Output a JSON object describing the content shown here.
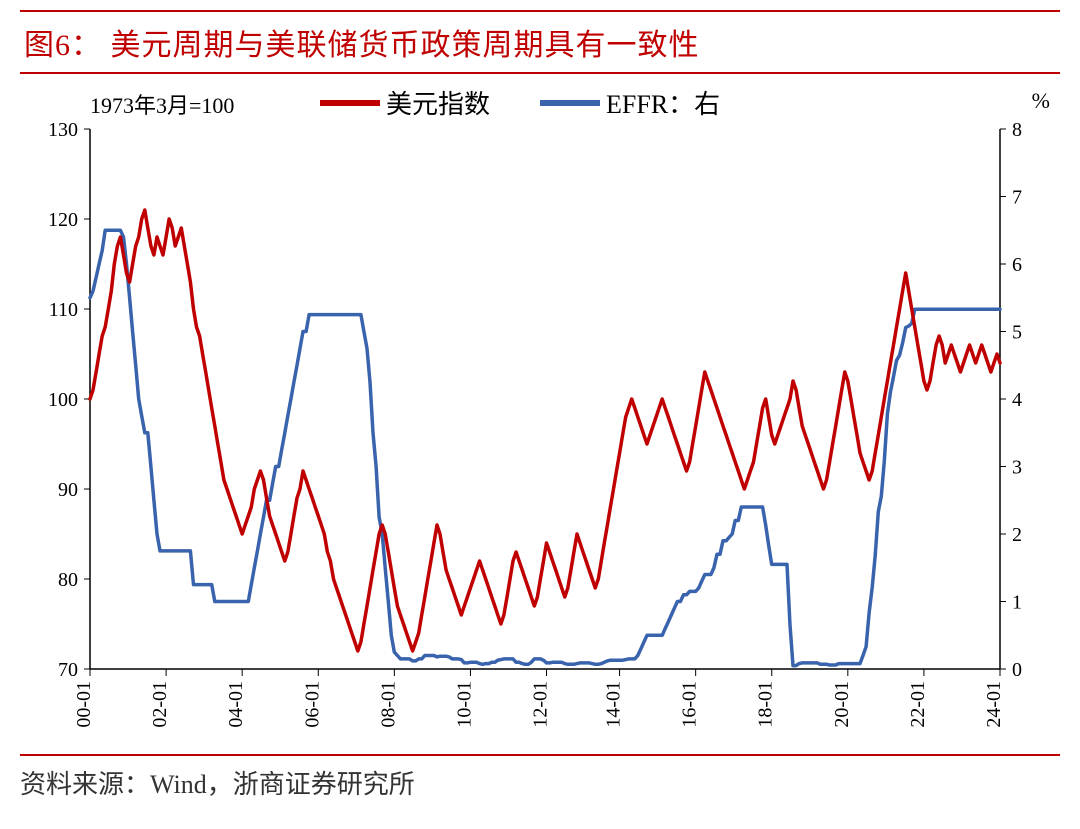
{
  "title": "图6：  美元周期与美联储货币政策周期具有一致性",
  "subtitle_left": "1973年3月=100",
  "subtitle_right": "%",
  "legend": {
    "series1": {
      "label": "美元指数",
      "color": "#c00000"
    },
    "series2": {
      "label": "EFFR：右",
      "color": "#3a63ad"
    }
  },
  "source": "资料来源：Wind，浙商证券研究所",
  "chart": {
    "type": "dual-axis-line",
    "background_color": "#ffffff",
    "line_width": 3.5,
    "x": {
      "ticks": [
        "00-01",
        "02-01",
        "04-01",
        "06-01",
        "08-01",
        "10-01",
        "12-01",
        "14-01",
        "16-01",
        "18-01",
        "20-01",
        "22-01",
        "24-01"
      ],
      "tick_rotation": -90,
      "domain_index": [
        0,
        300
      ]
    },
    "y_left": {
      "min": 70,
      "max": 130,
      "step": 10,
      "ticks": [
        70,
        80,
        90,
        100,
        110,
        120,
        130
      ],
      "color": "#c00000"
    },
    "y_right": {
      "min": 0,
      "max": 8,
      "step": 1,
      "ticks": [
        0,
        1,
        2,
        3,
        4,
        5,
        6,
        7,
        8
      ],
      "color": "#3a63ad"
    },
    "series_usd": [
      100,
      101,
      103,
      105,
      107,
      108,
      110,
      112,
      115,
      117,
      118,
      116,
      114,
      113,
      115,
      117,
      118,
      120,
      121,
      119,
      117,
      116,
      118,
      117,
      116,
      118,
      120,
      119,
      117,
      118,
      119,
      117,
      115,
      113,
      110,
      108,
      107,
      105,
      103,
      101,
      99,
      97,
      95,
      93,
      91,
      90,
      89,
      88,
      87,
      86,
      85,
      86,
      87,
      88,
      90,
      91,
      92,
      91,
      89,
      87,
      86,
      85,
      84,
      83,
      82,
      83,
      85,
      87,
      89,
      90,
      92,
      91,
      90,
      89,
      88,
      87,
      86,
      85,
      83,
      82,
      80,
      79,
      78,
      77,
      76,
      75,
      74,
      73,
      72,
      73,
      75,
      77,
      79,
      81,
      83,
      85,
      86,
      85,
      83,
      81,
      79,
      77,
      76,
      75,
      74,
      73,
      72,
      73,
      74,
      76,
      78,
      80,
      82,
      84,
      86,
      85,
      83,
      81,
      80,
      79,
      78,
      77,
      76,
      77,
      78,
      79,
      80,
      81,
      82,
      81,
      80,
      79,
      78,
      77,
      76,
      75,
      76,
      78,
      80,
      82,
      83,
      82,
      81,
      80,
      79,
      78,
      77,
      78,
      80,
      82,
      84,
      83,
      82,
      81,
      80,
      79,
      78,
      79,
      81,
      83,
      85,
      84,
      83,
      82,
      81,
      80,
      79,
      80,
      82,
      84,
      86,
      88,
      90,
      92,
      94,
      96,
      98,
      99,
      100,
      99,
      98,
      97,
      96,
      95,
      96,
      97,
      98,
      99,
      100,
      99,
      98,
      97,
      96,
      95,
      94,
      93,
      92,
      93,
      95,
      97,
      99,
      101,
      103,
      102,
      101,
      100,
      99,
      98,
      97,
      96,
      95,
      94,
      93,
      92,
      91,
      90,
      91,
      92,
      93,
      95,
      97,
      99,
      100,
      98,
      96,
      95,
      96,
      97,
      98,
      99,
      100,
      102,
      101,
      99,
      97,
      96,
      95,
      94,
      93,
      92,
      91,
      90,
      91,
      93,
      95,
      97,
      99,
      101,
      103,
      102,
      100,
      98,
      96,
      94,
      93,
      92,
      91,
      92,
      94,
      96,
      98,
      100,
      102,
      104,
      106,
      108,
      110,
      112,
      114,
      112,
      110,
      108,
      106,
      104,
      102,
      101,
      102,
      104,
      106,
      107,
      106,
      104,
      105,
      106,
      105,
      104,
      103,
      104,
      105,
      106,
      105,
      104,
      105,
      106,
      105,
      104,
      103,
      104,
      105,
      104
    ],
    "series_effr": [
      5.5,
      5.6,
      5.8,
      6.0,
      6.2,
      6.5,
      6.5,
      6.5,
      6.5,
      6.5,
      6.5,
      6.4,
      6.0,
      5.5,
      5.0,
      4.5,
      4.0,
      3.75,
      3.5,
      3.5,
      3.0,
      2.5,
      2.0,
      1.75,
      1.75,
      1.75,
      1.75,
      1.75,
      1.75,
      1.75,
      1.75,
      1.75,
      1.75,
      1.75,
      1.25,
      1.25,
      1.25,
      1.25,
      1.25,
      1.25,
      1.25,
      1.0,
      1.0,
      1.0,
      1.0,
      1.0,
      1.0,
      1.0,
      1.0,
      1.0,
      1.0,
      1.0,
      1.0,
      1.25,
      1.5,
      1.75,
      2.0,
      2.25,
      2.5,
      2.5,
      2.75,
      3.0,
      3.0,
      3.25,
      3.5,
      3.75,
      4.0,
      4.25,
      4.5,
      4.75,
      5.0,
      5.0,
      5.25,
      5.25,
      5.25,
      5.25,
      5.25,
      5.25,
      5.25,
      5.25,
      5.25,
      5.25,
      5.25,
      5.25,
      5.25,
      5.25,
      5.25,
      5.25,
      5.25,
      5.25,
      5.0,
      4.75,
      4.25,
      3.5,
      3.0,
      2.25,
      2.0,
      1.5,
      1.0,
      0.5,
      0.25,
      0.2,
      0.15,
      0.15,
      0.15,
      0.15,
      0.12,
      0.12,
      0.15,
      0.15,
      0.2,
      0.2,
      0.2,
      0.2,
      0.18,
      0.19,
      0.19,
      0.19,
      0.18,
      0.15,
      0.15,
      0.15,
      0.14,
      0.09,
      0.09,
      0.1,
      0.1,
      0.1,
      0.08,
      0.07,
      0.08,
      0.08,
      0.1,
      0.1,
      0.13,
      0.14,
      0.15,
      0.15,
      0.15,
      0.15,
      0.1,
      0.1,
      0.08,
      0.07,
      0.07,
      0.1,
      0.15,
      0.15,
      0.15,
      0.13,
      0.09,
      0.09,
      0.1,
      0.1,
      0.1,
      0.1,
      0.08,
      0.07,
      0.07,
      0.07,
      0.08,
      0.09,
      0.09,
      0.09,
      0.09,
      0.08,
      0.07,
      0.07,
      0.08,
      0.1,
      0.12,
      0.13,
      0.13,
      0.13,
      0.13,
      0.13,
      0.14,
      0.15,
      0.15,
      0.15,
      0.2,
      0.3,
      0.4,
      0.5,
      0.5,
      0.5,
      0.5,
      0.5,
      0.5,
      0.6,
      0.7,
      0.8,
      0.9,
      1.0,
      1.0,
      1.1,
      1.1,
      1.15,
      1.15,
      1.15,
      1.2,
      1.3,
      1.4,
      1.4,
      1.4,
      1.5,
      1.7,
      1.7,
      1.9,
      1.9,
      1.95,
      2.0,
      2.2,
      2.2,
      2.4,
      2.4,
      2.4,
      2.4,
      2.4,
      2.4,
      2.4,
      2.4,
      2.13,
      1.83,
      1.55,
      1.55,
      1.55,
      1.55,
      1.55,
      1.55,
      0.65,
      0.05,
      0.05,
      0.08,
      0.09,
      0.09,
      0.09,
      0.09,
      0.09,
      0.09,
      0.07,
      0.07,
      0.07,
      0.06,
      0.06,
      0.06,
      0.08,
      0.08,
      0.08,
      0.08,
      0.08,
      0.08,
      0.08,
      0.08,
      0.2,
      0.33,
      0.83,
      1.21,
      1.68,
      2.33,
      2.56,
      3.08,
      3.78,
      4.1,
      4.33,
      4.57,
      4.65,
      4.83,
      5.06,
      5.08,
      5.12,
      5.33,
      5.33,
      5.33,
      5.33,
      5.33,
      5.33,
      5.33,
      5.33,
      5.33,
      5.33,
      5.33,
      5.33,
      5.33,
      5.33,
      5.33,
      5.33,
      5.33,
      5.33,
      5.33,
      5.33,
      5.33,
      5.33,
      5.33,
      5.33,
      5.33,
      5.33,
      5.33,
      5.33,
      5.33
    ]
  }
}
